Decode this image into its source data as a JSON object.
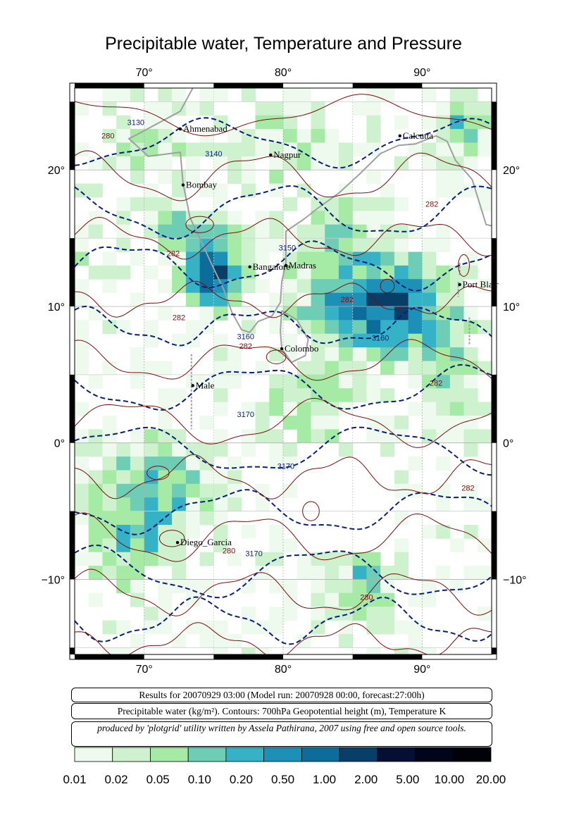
{
  "title": "Precipitable water, Temperature and Pressure",
  "axes": {
    "lon_ticks": [
      "70°",
      "80°",
      "90°"
    ],
    "lat_ticks": [
      "20°",
      "10°",
      "0°",
      "−10°"
    ],
    "lon_range": [
      65,
      95
    ],
    "lat_range": [
      -15.5,
      26
    ]
  },
  "cities": [
    {
      "name": "Ahmenabad",
      "lon": 72.6,
      "lat": 23.0
    },
    {
      "name": "Nagpur",
      "lon": 79.1,
      "lat": 21.1
    },
    {
      "name": "Calcutta",
      "lon": 88.4,
      "lat": 22.5
    },
    {
      "name": "Bombay",
      "lon": 72.8,
      "lat": 18.9
    },
    {
      "name": "Bangalore",
      "lon": 77.6,
      "lat": 12.9
    },
    {
      "name": "Madras",
      "lon": 80.2,
      "lat": 13.0
    },
    {
      "name": "Port Blair",
      "lon": 92.7,
      "lat": 11.6
    },
    {
      "name": "Colombo",
      "lon": 79.9,
      "lat": 6.9
    },
    {
      "name": "Male",
      "lon": 73.5,
      "lat": 4.2
    },
    {
      "name": "Diego_Garcia",
      "lon": 72.4,
      "lat": -7.3
    }
  ],
  "contour_labels": [
    {
      "text": "3130",
      "lon": 69.4,
      "lat": 23.3
    },
    {
      "text": "280",
      "lon": 67.4,
      "lat": 22.3
    },
    {
      "text": "3140",
      "lon": 75.0,
      "lat": 21.0
    },
    {
      "text": "282",
      "lon": 90.7,
      "lat": 17.3
    },
    {
      "text": "282",
      "lon": 72.1,
      "lat": 13.7
    },
    {
      "text": "3150",
      "lon": 80.3,
      "lat": 14.1
    },
    {
      "text": "282",
      "lon": 84.6,
      "lat": 10.3
    },
    {
      "text": "282",
      "lon": 72.5,
      "lat": 9.0
    },
    {
      "text": "3160",
      "lon": 87.0,
      "lat": 7.5
    },
    {
      "text": "3160",
      "lon": 77.3,
      "lat": 7.6
    },
    {
      "text": "282",
      "lon": 77.3,
      "lat": 6.9
    },
    {
      "text": "282",
      "lon": 91.0,
      "lat": 4.2
    },
    {
      "text": "3170",
      "lon": 77.3,
      "lat": 1.9
    },
    {
      "text": "3170",
      "lon": 80.2,
      "lat": -1.9
    },
    {
      "text": "282",
      "lon": 93.3,
      "lat": -3.5
    },
    {
      "text": "280",
      "lon": 76.1,
      "lat": -8.1
    },
    {
      "text": "3170",
      "lon": 77.9,
      "lat": -8.3
    },
    {
      "text": "280",
      "lon": 86.0,
      "lat": -11.5
    }
  ],
  "captions": {
    "run": "Results for 20070929 03:00 (Model run: 20070928 00:00, forecast:27:00h)",
    "fields": "Precipitable water (kg/m²).  Contours: 700hPa Geopotential height (m), Temperature K",
    "credit": "produced by 'plotgrid' utility written by Assela Pathirana, 2007 using free and open source tools."
  },
  "colorbar": {
    "labels": [
      "0.01",
      "0.02",
      "0.05",
      "0.10",
      "0.20",
      "0.50",
      "1.00",
      "2.00",
      "5.00",
      "10.00",
      "20.00"
    ],
    "colors": [
      "#eefaee",
      "#cdf2cd",
      "#a5eaa5",
      "#6ecdb5",
      "#36b2c6",
      "#1d90b8",
      "#0d6d9a",
      "#083f68",
      "#050f34",
      "#02041c",
      "#01010a"
    ]
  }
}
